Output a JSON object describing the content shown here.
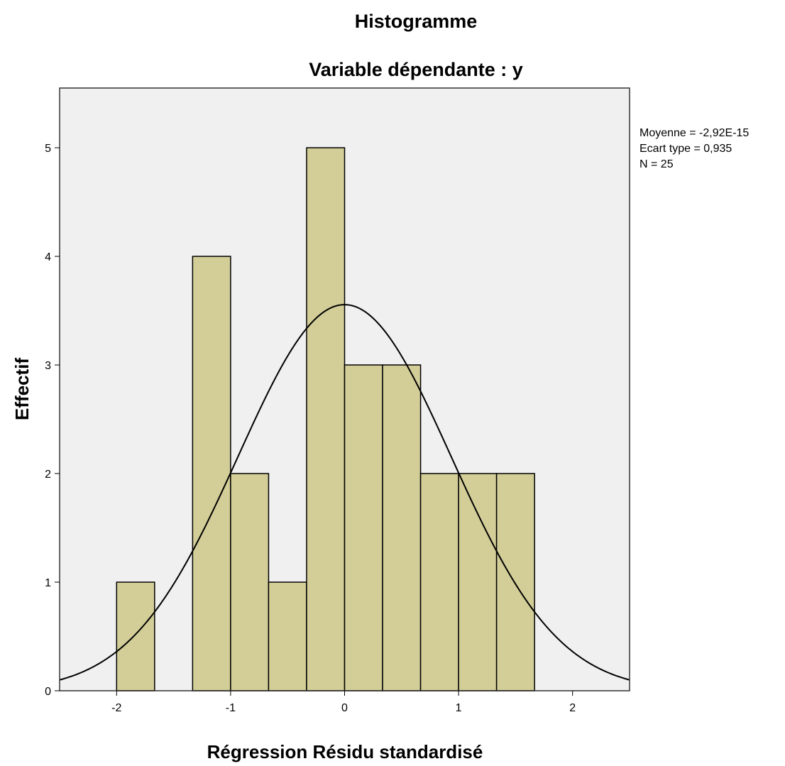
{
  "chart_data": {
    "type": "bar",
    "title": "Histogramme",
    "subtitle": "Variable dépendante : y",
    "xlabel": "Régression Résidu standardisé",
    "ylabel": "Effectif",
    "bin_width": 0.3333,
    "bins": [
      {
        "x0": -2.0,
        "x1": -1.6667,
        "count": 1
      },
      {
        "x0": -1.6667,
        "x1": -1.3333,
        "count": 0
      },
      {
        "x0": -1.3333,
        "x1": -1.0,
        "count": 4
      },
      {
        "x0": -1.0,
        "x1": -0.6667,
        "count": 2
      },
      {
        "x0": -0.6667,
        "x1": -0.3333,
        "count": 1
      },
      {
        "x0": -0.3333,
        "x1": 0.0,
        "count": 5
      },
      {
        "x0": 0.0,
        "x1": 0.3333,
        "count": 3
      },
      {
        "x0": 0.3333,
        "x1": 0.6667,
        "count": 3
      },
      {
        "x0": 0.6667,
        "x1": 1.0,
        "count": 2
      },
      {
        "x0": 1.0,
        "x1": 1.3333,
        "count": 2
      },
      {
        "x0": 1.3333,
        "x1": 1.6667,
        "count": 2
      }
    ],
    "xlim": [
      -2.5,
      2.5
    ],
    "ylim": [
      0,
      5.55
    ],
    "x_ticks": [
      -2,
      -1,
      0,
      1,
      2
    ],
    "x_tick_labels": [
      "-2",
      "-1",
      "0",
      "1",
      "2"
    ],
    "y_ticks": [
      0,
      1,
      2,
      3,
      4,
      5
    ],
    "y_tick_labels": [
      "0",
      "1",
      "2",
      "3",
      "4",
      "5"
    ],
    "normal_curve": {
      "mean": 0,
      "sd": 0.935,
      "n": 25
    },
    "stats": {
      "mean_label": "Moyenne = -2,92E-15",
      "sd_label": "Ecart type = 0,935",
      "n_label": "N = 25"
    },
    "grid": false,
    "legend": "right",
    "colors": {
      "plot_background": "#f0f0f0",
      "bar_fill": "#d3ce98",
      "bar_stroke": "#000000",
      "curve": "#000000"
    }
  }
}
